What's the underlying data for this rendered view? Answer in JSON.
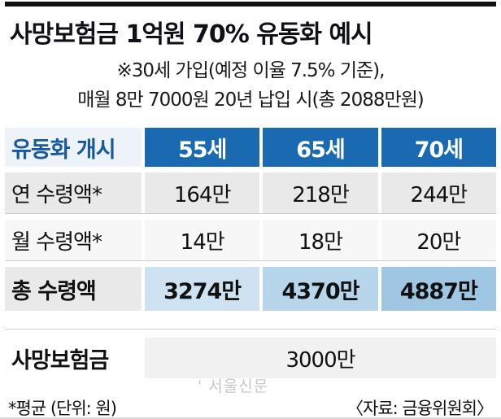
{
  "title": "사망보험금 1억원 70% 유동화 예시",
  "subtitle": {
    "line1": "※30세 가입(예정 이율 7.5% 기준),",
    "line2": "매월 8만 7000원 20년 납입 시(총 2088만원)"
  },
  "table": {
    "header": {
      "label": "유동화 개시",
      "columns": [
        "55세",
        "65세",
        "70세"
      ]
    },
    "rows": [
      {
        "label": "연 수령액*",
        "values": [
          "164만",
          "218만",
          "244만"
        ]
      },
      {
        "label": "월 수령액*",
        "values": [
          "14만",
          "18만",
          "20만"
        ]
      },
      {
        "label": "총 수령액",
        "values": [
          "3274만",
          "4370만",
          "4887만"
        ]
      }
    ],
    "death_benefit_row": {
      "label": "사망보험금",
      "value": "3000만"
    }
  },
  "footnotes": {
    "left": "*평균 (단위: 원)",
    "right": "〈자료: 금융위원회〉"
  },
  "watermark": "서울신문",
  "colors": {
    "top_rule": "#111111",
    "header_blue": "#1a6ab2",
    "header_label_blue_text": "#15599e",
    "row_gray": "#e9e9e9",
    "total_cell_1": "#cfe2f2",
    "total_cell_2": "#b7d5eb",
    "total_cell_3": "#9fc7e3"
  },
  "chart_data": {
    "type": "table",
    "title": "사망보험금 1억원 70% 유동화 예시",
    "subtitle": "※30세 가입(예정 이율 7.5% 기준), 매월 8만 7000원 20년 납입 시(총 2088만원)",
    "columns": [
      "유동화 개시",
      "55세",
      "65세",
      "70세"
    ],
    "rows": [
      [
        "연 수령액*",
        "164만",
        "218만",
        "244만"
      ],
      [
        "월 수령액*",
        "14만",
        "18만",
        "20만"
      ],
      [
        "총 수령액",
        "3274만",
        "4370만",
        "4887만"
      ],
      [
        "사망보험금",
        "3000만",
        "3000만",
        "3000만"
      ]
    ],
    "unit_note": "*평균 (단위: 원)",
    "source": "자료: 금융위원회"
  }
}
